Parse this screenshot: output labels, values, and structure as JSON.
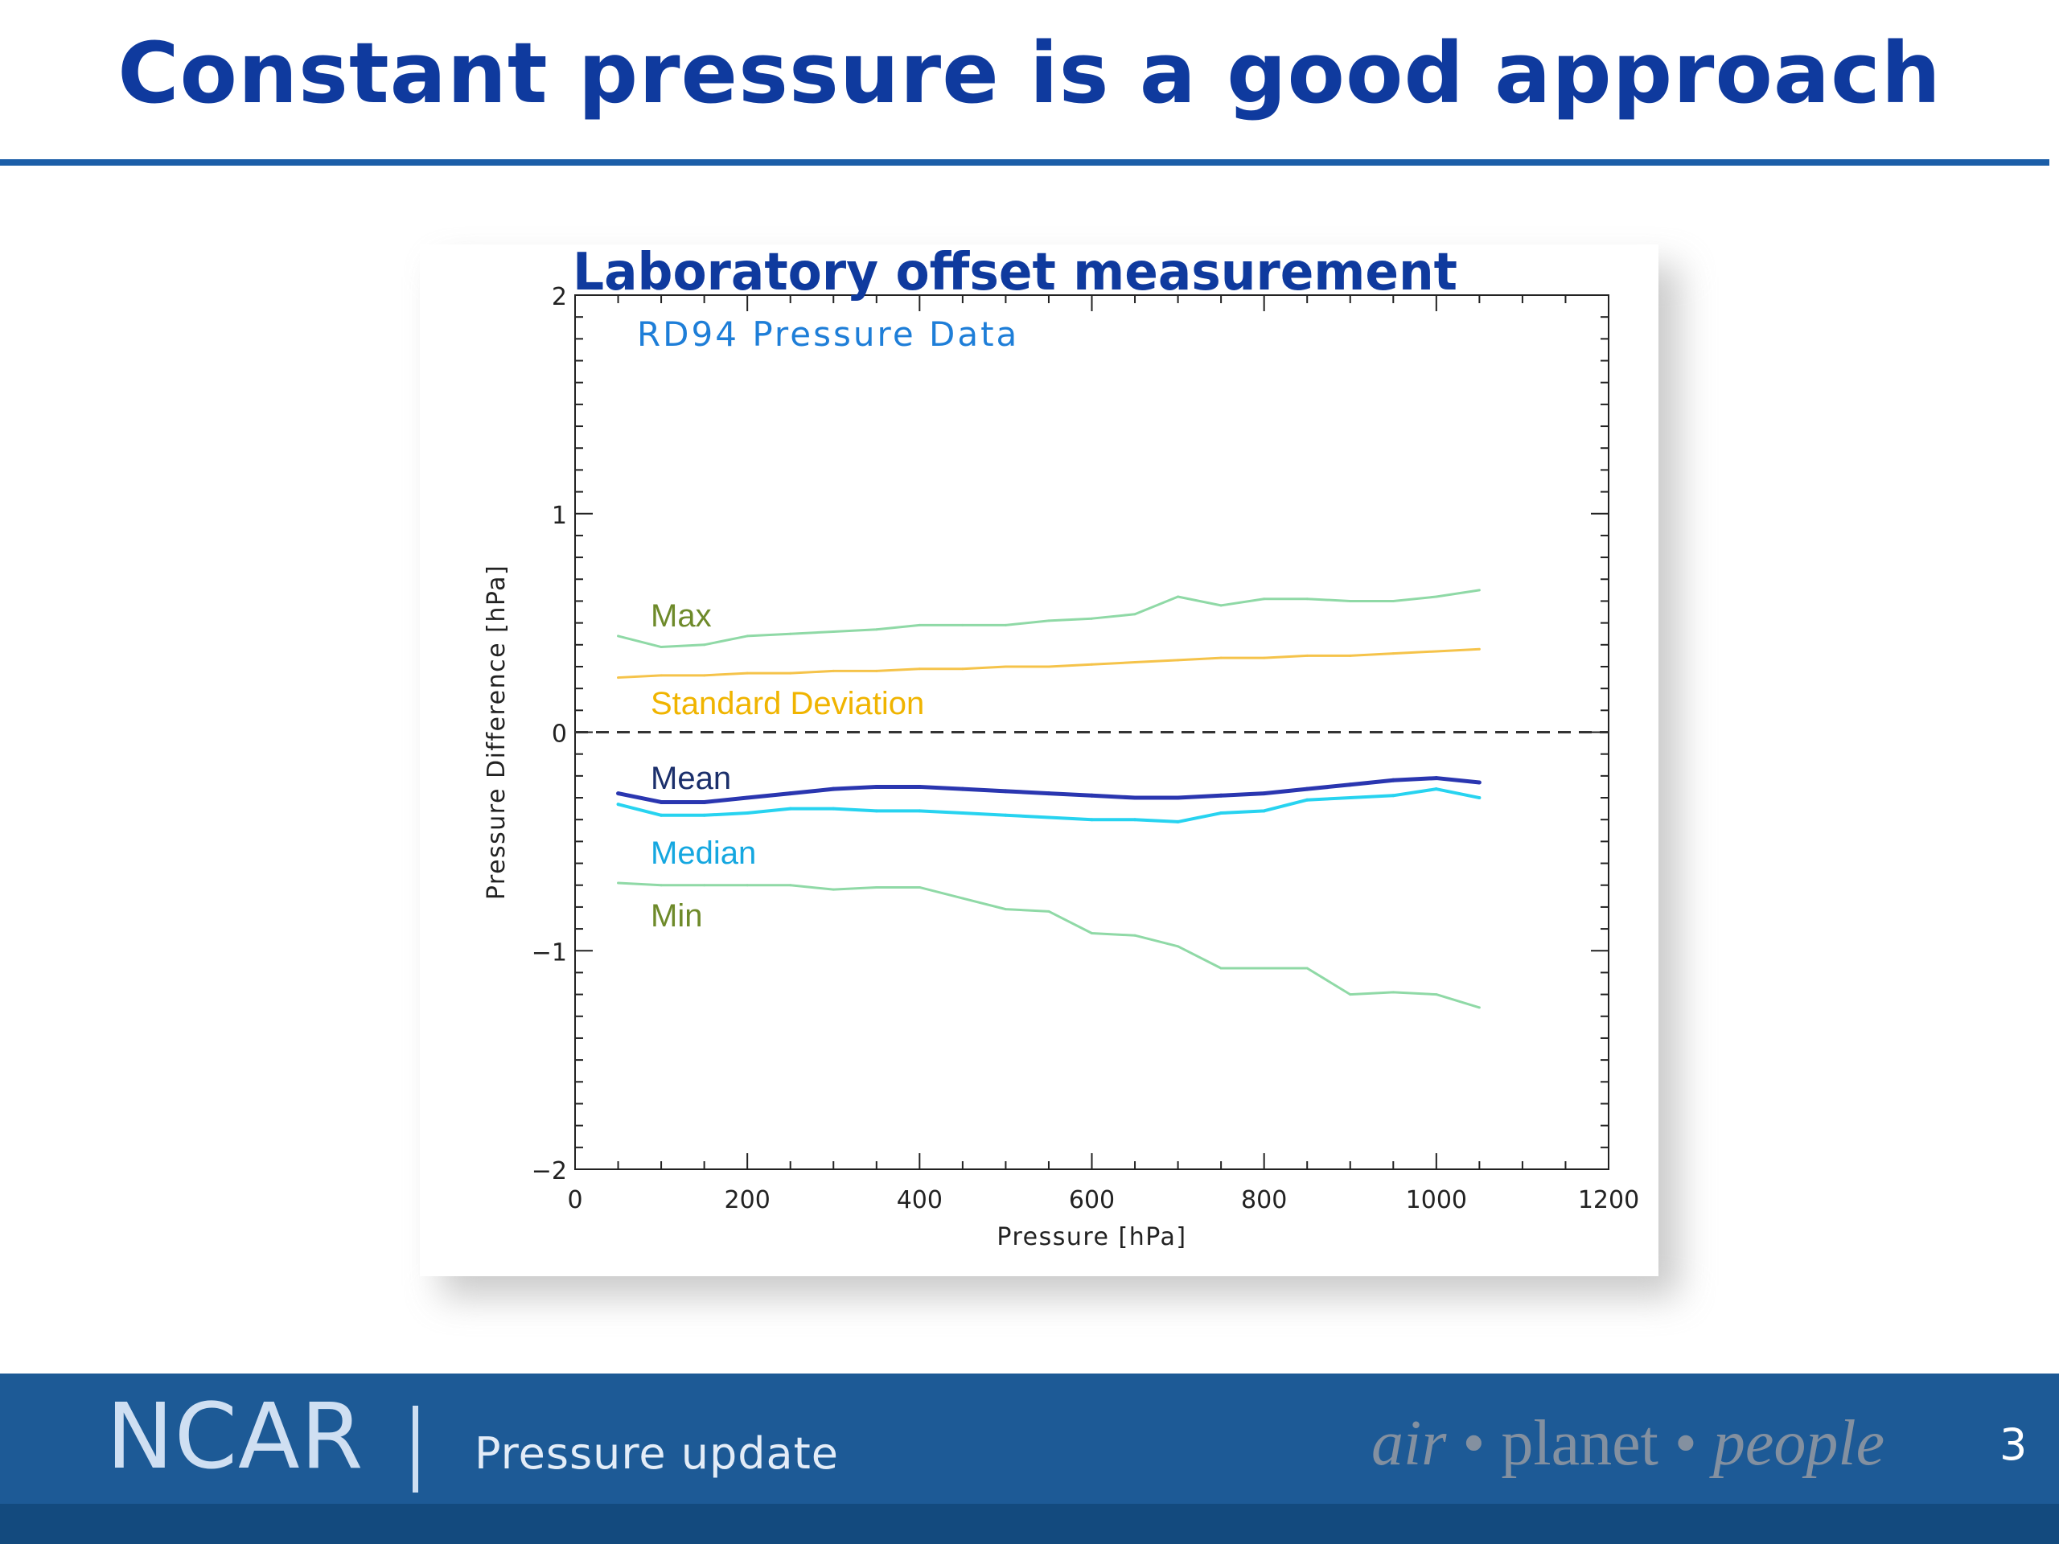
{
  "slide": {
    "title": "Constant pressure is a good approach",
    "footer_logo": "NCAR",
    "footer_subtitle": "Pressure update",
    "tagline": {
      "word1": "air",
      "word2": "planet",
      "word3": "people",
      "separator": "•"
    },
    "page_number": "3"
  },
  "colors": {
    "title": "#0f3a9e",
    "rule": "#1b5ea8",
    "footer_bg": "#1d5a96",
    "max": "#8fd9a6",
    "min": "#8fd9a6",
    "std": "#f5c34a",
    "mean": "#2a36b0",
    "median": "#27d3f0",
    "label_max_min": "#6e8a2a",
    "label_std": "#f0b400",
    "label_mean": "#1b2f6b",
    "label_median": "#15a7e0"
  },
  "chart_data": {
    "type": "line",
    "overlay_title": "Laboratory offset measurement",
    "inner_title": "RD94 Pressure Data",
    "xlabel": "Pressure [hPa]",
    "ylabel": "Pressure Difference [hPa]",
    "xlim": [
      0,
      1200
    ],
    "ylim": [
      -2,
      2
    ],
    "x_ticks": [
      0,
      200,
      400,
      600,
      800,
      1000,
      1200
    ],
    "y_ticks": [
      -2,
      -1,
      0,
      1,
      2
    ],
    "x_tick_labels": [
      "0",
      "200",
      "400",
      "600",
      "800",
      "1000",
      "1200"
    ],
    "y_tick_labels": [
      "−2",
      "−1",
      "0",
      "1",
      "2"
    ],
    "zero_line": "dashed",
    "x": [
      50,
      100,
      150,
      200,
      250,
      300,
      350,
      400,
      450,
      500,
      550,
      600,
      650,
      700,
      750,
      800,
      850,
      900,
      950,
      1000,
      1050
    ],
    "series": [
      {
        "name": "Max",
        "key": "max",
        "values": [
          0.44,
          0.39,
          0.4,
          0.44,
          0.45,
          0.46,
          0.47,
          0.49,
          0.49,
          0.49,
          0.51,
          0.52,
          0.54,
          0.62,
          0.58,
          0.61,
          0.61,
          0.6,
          0.6,
          0.62,
          0.65
        ]
      },
      {
        "name": "Standard Deviation",
        "key": "std",
        "values": [
          0.25,
          0.26,
          0.26,
          0.27,
          0.27,
          0.28,
          0.28,
          0.29,
          0.29,
          0.3,
          0.3,
          0.31,
          0.32,
          0.33,
          0.34,
          0.34,
          0.35,
          0.35,
          0.36,
          0.37,
          0.38
        ]
      },
      {
        "name": "Mean",
        "key": "mean",
        "values": [
          -0.28,
          -0.32,
          -0.32,
          -0.3,
          -0.28,
          -0.26,
          -0.25,
          -0.25,
          -0.26,
          -0.27,
          -0.28,
          -0.29,
          -0.3,
          -0.3,
          -0.29,
          -0.28,
          -0.26,
          -0.24,
          -0.22,
          -0.21,
          -0.23
        ]
      },
      {
        "name": "Median",
        "key": "median",
        "values": [
          -0.33,
          -0.38,
          -0.38,
          -0.37,
          -0.35,
          -0.35,
          -0.36,
          -0.36,
          -0.37,
          -0.38,
          -0.39,
          -0.4,
          -0.4,
          -0.41,
          -0.37,
          -0.36,
          -0.31,
          -0.3,
          -0.29,
          -0.26,
          -0.3
        ]
      },
      {
        "name": "Min",
        "key": "min",
        "values": [
          -0.69,
          -0.7,
          -0.7,
          -0.7,
          -0.7,
          -0.72,
          -0.71,
          -0.71,
          -0.76,
          -0.81,
          -0.82,
          -0.92,
          -0.93,
          -0.98,
          -1.08,
          -1.08,
          -1.08,
          -1.2,
          -1.19,
          -1.2,
          -1.26
        ]
      }
    ]
  }
}
